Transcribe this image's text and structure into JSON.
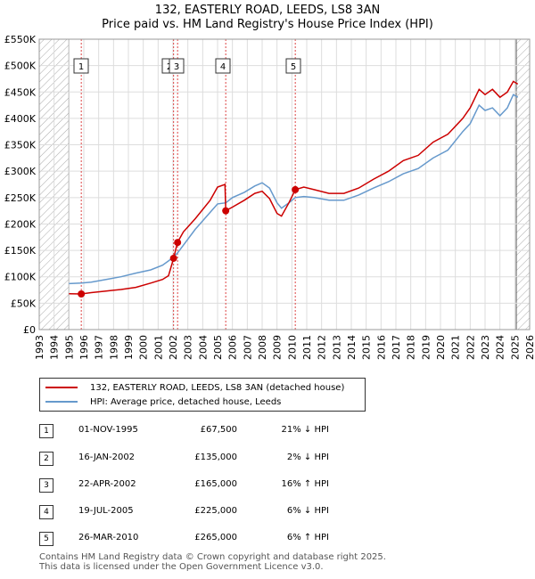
{
  "title_line1": "132, EASTERLY ROAD, LEEDS, LS8 3AN",
  "title_line2": "Price paid vs. HM Land Registry's House Price Index (HPI)",
  "colors": {
    "property": "#cc0000",
    "hpi": "#6699cc",
    "hatch": "#aaaaaa",
    "marker_line": "#dd4444"
  },
  "chart_data": {
    "type": "line",
    "x_range": [
      1993,
      2026
    ],
    "ylim": [
      0,
      550000
    ],
    "y_ticks": [
      0,
      50000,
      100000,
      150000,
      200000,
      250000,
      300000,
      350000,
      400000,
      450000,
      500000,
      550000
    ],
    "y_tick_labels": [
      "£0",
      "£50K",
      "£100K",
      "£150K",
      "£200K",
      "£250K",
      "£300K",
      "£350K",
      "£400K",
      "£450K",
      "£500K",
      "£550K"
    ],
    "x_ticks": [
      1993,
      1994,
      1995,
      1996,
      1997,
      1998,
      1999,
      2000,
      2001,
      2002,
      2003,
      2004,
      2005,
      2006,
      2007,
      2008,
      2009,
      2010,
      2011,
      2012,
      2013,
      2014,
      2015,
      2016,
      2017,
      2018,
      2019,
      2020,
      2021,
      2022,
      2023,
      2024,
      2025,
      2026
    ],
    "x_tick_labels": [
      "1993",
      "1994",
      "1995",
      "1996",
      "1997",
      "1998",
      "1999",
      "2000",
      "2001",
      "2002",
      "2003",
      "2004",
      "2005",
      "2006",
      "2007",
      "2008",
      "2009",
      "2010",
      "2011",
      "2012",
      "2013",
      "2014",
      "2015",
      "2016",
      "2017",
      "2018",
      "2019",
      "2020",
      "2021",
      "2022",
      "2023",
      "2024",
      "2025",
      "2026"
    ],
    "hatch_ranges": [
      [
        1993,
        1995.0
      ],
      [
        2025.1,
        2026
      ]
    ],
    "series": [
      {
        "name": "132, EASTERLY ROAD, LEEDS, LS8 3AN (detached house)",
        "color": "#cc0000",
        "points": [
          [
            1995.0,
            68000
          ],
          [
            1995.83,
            67500
          ],
          [
            1996.5,
            70000
          ],
          [
            1997.5,
            73000
          ],
          [
            1998.5,
            76000
          ],
          [
            1999.5,
            80000
          ],
          [
            2000.5,
            88000
          ],
          [
            2001.3,
            95000
          ],
          [
            2001.7,
            102000
          ],
          [
            2002.04,
            135000
          ],
          [
            2002.3,
            165000
          ],
          [
            2002.7,
            185000
          ],
          [
            2003.5,
            210000
          ],
          [
            2004.5,
            245000
          ],
          [
            2005.0,
            270000
          ],
          [
            2005.5,
            275000
          ],
          [
            2005.55,
            225000
          ],
          [
            2006.0,
            232000
          ],
          [
            2006.8,
            245000
          ],
          [
            2007.5,
            258000
          ],
          [
            2008.0,
            262000
          ],
          [
            2008.5,
            248000
          ],
          [
            2009.0,
            220000
          ],
          [
            2009.3,
            215000
          ],
          [
            2009.8,
            240000
          ],
          [
            2010.23,
            265000
          ],
          [
            2010.8,
            270000
          ],
          [
            2011.5,
            265000
          ],
          [
            2012.5,
            258000
          ],
          [
            2013.5,
            258000
          ],
          [
            2014.5,
            268000
          ],
          [
            2015.5,
            285000
          ],
          [
            2016.5,
            300000
          ],
          [
            2017.5,
            320000
          ],
          [
            2018.5,
            330000
          ],
          [
            2019.5,
            355000
          ],
          [
            2020.5,
            370000
          ],
          [
            2021.5,
            400000
          ],
          [
            2022.0,
            420000
          ],
          [
            2022.6,
            455000
          ],
          [
            2023.0,
            445000
          ],
          [
            2023.5,
            455000
          ],
          [
            2024.0,
            440000
          ],
          [
            2024.5,
            450000
          ],
          [
            2024.9,
            470000
          ],
          [
            2025.2,
            465000
          ]
        ]
      },
      {
        "name": "HPI: Average price, detached house, Leeds",
        "color": "#6699cc",
        "points": [
          [
            1995.0,
            87000
          ],
          [
            1995.83,
            88000
          ],
          [
            1996.5,
            90000
          ],
          [
            1997.5,
            95000
          ],
          [
            1998.5,
            100000
          ],
          [
            1999.5,
            107000
          ],
          [
            2000.5,
            113000
          ],
          [
            2001.3,
            122000
          ],
          [
            2001.7,
            130000
          ],
          [
            2002.04,
            138000
          ],
          [
            2002.3,
            145000
          ],
          [
            2002.7,
            160000
          ],
          [
            2003.5,
            190000
          ],
          [
            2004.5,
            222000
          ],
          [
            2005.0,
            238000
          ],
          [
            2005.55,
            240000
          ],
          [
            2006.0,
            250000
          ],
          [
            2006.8,
            260000
          ],
          [
            2007.5,
            272000
          ],
          [
            2008.0,
            278000
          ],
          [
            2008.5,
            268000
          ],
          [
            2009.0,
            240000
          ],
          [
            2009.3,
            230000
          ],
          [
            2009.8,
            240000
          ],
          [
            2010.23,
            250000
          ],
          [
            2010.8,
            252000
          ],
          [
            2011.5,
            250000
          ],
          [
            2012.5,
            245000
          ],
          [
            2013.5,
            245000
          ],
          [
            2014.5,
            255000
          ],
          [
            2015.5,
            268000
          ],
          [
            2016.5,
            280000
          ],
          [
            2017.5,
            295000
          ],
          [
            2018.5,
            305000
          ],
          [
            2019.5,
            325000
          ],
          [
            2020.5,
            340000
          ],
          [
            2021.5,
            375000
          ],
          [
            2022.0,
            390000
          ],
          [
            2022.6,
            425000
          ],
          [
            2023.0,
            415000
          ],
          [
            2023.5,
            420000
          ],
          [
            2024.0,
            405000
          ],
          [
            2024.5,
            420000
          ],
          [
            2024.9,
            445000
          ],
          [
            2025.2,
            440000
          ]
        ]
      }
    ],
    "sales": [
      {
        "id": "1",
        "x": 1995.83,
        "price": 67500,
        "date": "01-NOV-1995",
        "price_label": "£67,500",
        "hpi_diff": "21% ↓ HPI"
      },
      {
        "id": "2",
        "x": 2002.04,
        "price": 135000,
        "date": "16-JAN-2002",
        "price_label": "£135,000",
        "hpi_diff": "2% ↓ HPI"
      },
      {
        "id": "3",
        "x": 2002.31,
        "price": 165000,
        "date": "22-APR-2002",
        "price_label": "£165,000",
        "hpi_diff": "16% ↑ HPI"
      },
      {
        "id": "4",
        "x": 2005.55,
        "price": 225000,
        "date": "19-JUL-2005",
        "price_label": "£225,000",
        "hpi_diff": "6% ↓ HPI"
      },
      {
        "id": "5",
        "x": 2010.23,
        "price": 265000,
        "date": "26-MAR-2010",
        "price_label": "£265,000",
        "hpi_diff": "6% ↑ HPI"
      }
    ]
  },
  "legend": {
    "property_label": "132, EASTERLY ROAD, LEEDS, LS8 3AN (detached house)",
    "hpi_label": "HPI: Average price, detached house, Leeds"
  },
  "table": {
    "rows": [
      {
        "id": "1",
        "date": "01-NOV-1995",
        "price": "£67,500",
        "hpi": "21% ↓ HPI"
      },
      {
        "id": "2",
        "date": "16-JAN-2002",
        "price": "£135,000",
        "hpi": "2% ↓ HPI"
      },
      {
        "id": "3",
        "date": "22-APR-2002",
        "price": "£165,000",
        "hpi": "16% ↑ HPI"
      },
      {
        "id": "4",
        "date": "19-JUL-2005",
        "price": "£225,000",
        "hpi": "6% ↓ HPI"
      },
      {
        "id": "5",
        "date": "26-MAR-2010",
        "price": "£265,000",
        "hpi": "6% ↑ HPI"
      }
    ]
  },
  "footer": {
    "line1": "Contains HM Land Registry data © Crown copyright and database right 2025.",
    "line2": "This data is licensed under the Open Government Licence v3.0."
  }
}
